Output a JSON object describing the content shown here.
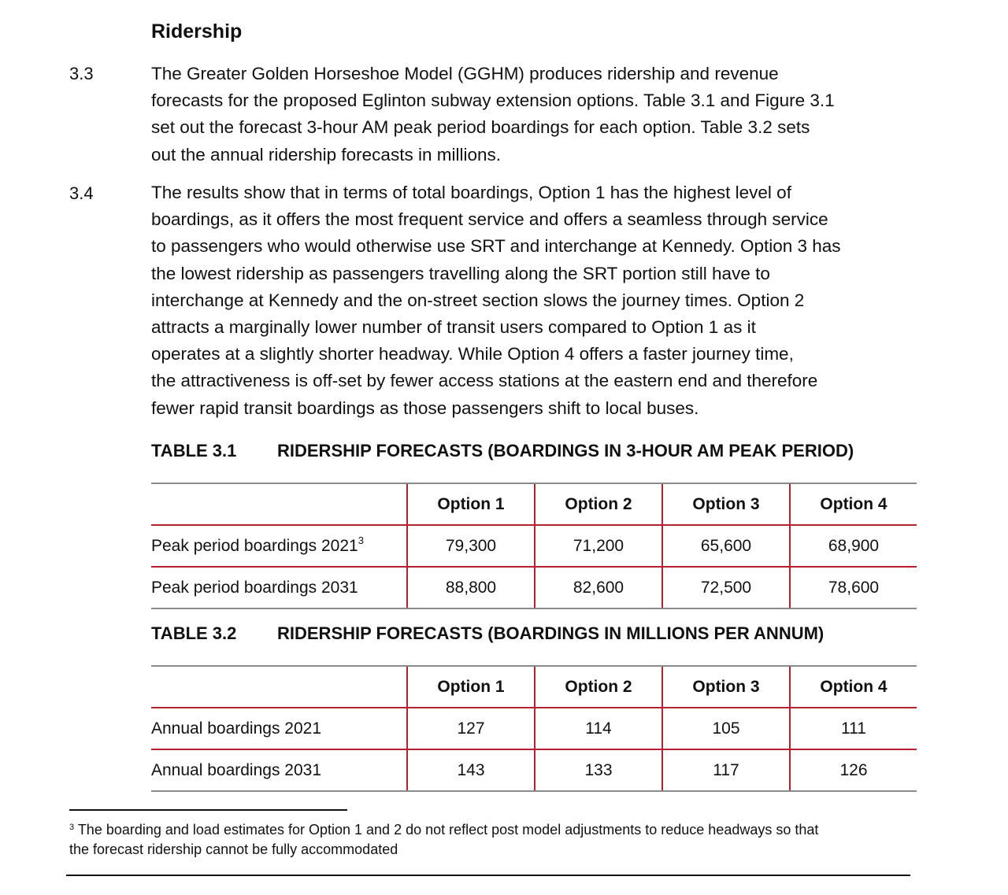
{
  "heading": "Ridership",
  "paragraphs": [
    {
      "number": "3.3",
      "lines": [
        "The Greater Golden Horseshoe Model (GGHM) produces ridership and revenue",
        "forecasts for the proposed Eglinton subway extension options. Table 3.1 and Figure 3.1",
        "set out the forecast 3-hour AM peak period boardings for each option. Table 3.2 sets",
        "out the annual ridership forecasts in millions."
      ]
    },
    {
      "number": "3.4",
      "lines": [
        "The results show that in terms of total boardings, Option 1 has the highest level of",
        "boardings, as it offers the most frequent service and offers a seamless through service",
        "to passengers who would otherwise use SRT and interchange at Kennedy. Option 3 has",
        "the lowest ridership as passengers travelling along the SRT portion still have to",
        "interchange at Kennedy and the on-street section slows the journey times. Option 2",
        "attracts a marginally lower number of transit users compared to Option 1 as it",
        "operates at a slightly shorter headway. While Option 4 offers a faster journey time,",
        "the attractiveness is off-set by fewer access stations at the eastern end and therefore",
        "fewer rapid transit boardings as those passengers shift to local buses."
      ]
    }
  ],
  "tables": [
    {
      "label": "TABLE 3.1",
      "title": "RIDERSHIP FORECASTS (BOARDINGS IN 3-HOUR AM PEAK PERIOD)",
      "headers": [
        "",
        "Option 1",
        "Option 2",
        "Option 3",
        "Option 4"
      ],
      "rows": [
        {
          "label": "Peak period boardings 2021",
          "footnote_ref": "3",
          "values": [
            "79,300",
            "71,200",
            "65,600",
            "68,900"
          ]
        },
        {
          "label": "Peak period boardings 2031",
          "values": [
            "88,800",
            "82,600",
            "72,500",
            "78,600"
          ]
        }
      ]
    },
    {
      "label": "TABLE 3.2",
      "title": "RIDERSHIP FORECASTS (BOARDINGS IN MILLIONS PER ANNUM)",
      "headers": [
        "",
        "Option 1",
        "Option 2",
        "Option 3",
        "Option 4"
      ],
      "rows": [
        {
          "label": "Annual boardings 2021",
          "values": [
            "127",
            "114",
            "105",
            "111"
          ]
        },
        {
          "label": "Annual boardings 2031",
          "values": [
            "143",
            "133",
            "117",
            "126"
          ]
        }
      ]
    }
  ],
  "footnote": {
    "marker": "3",
    "lines": [
      "The boarding and load estimates for Option 1 and 2 do not reflect post model adjustments to reduce headways so that",
      "the forecast ridership cannot be fully accommodated"
    ]
  },
  "colors": {
    "table_rule": "#b5212f",
    "table_outer_rule": "#8a8a8a"
  }
}
